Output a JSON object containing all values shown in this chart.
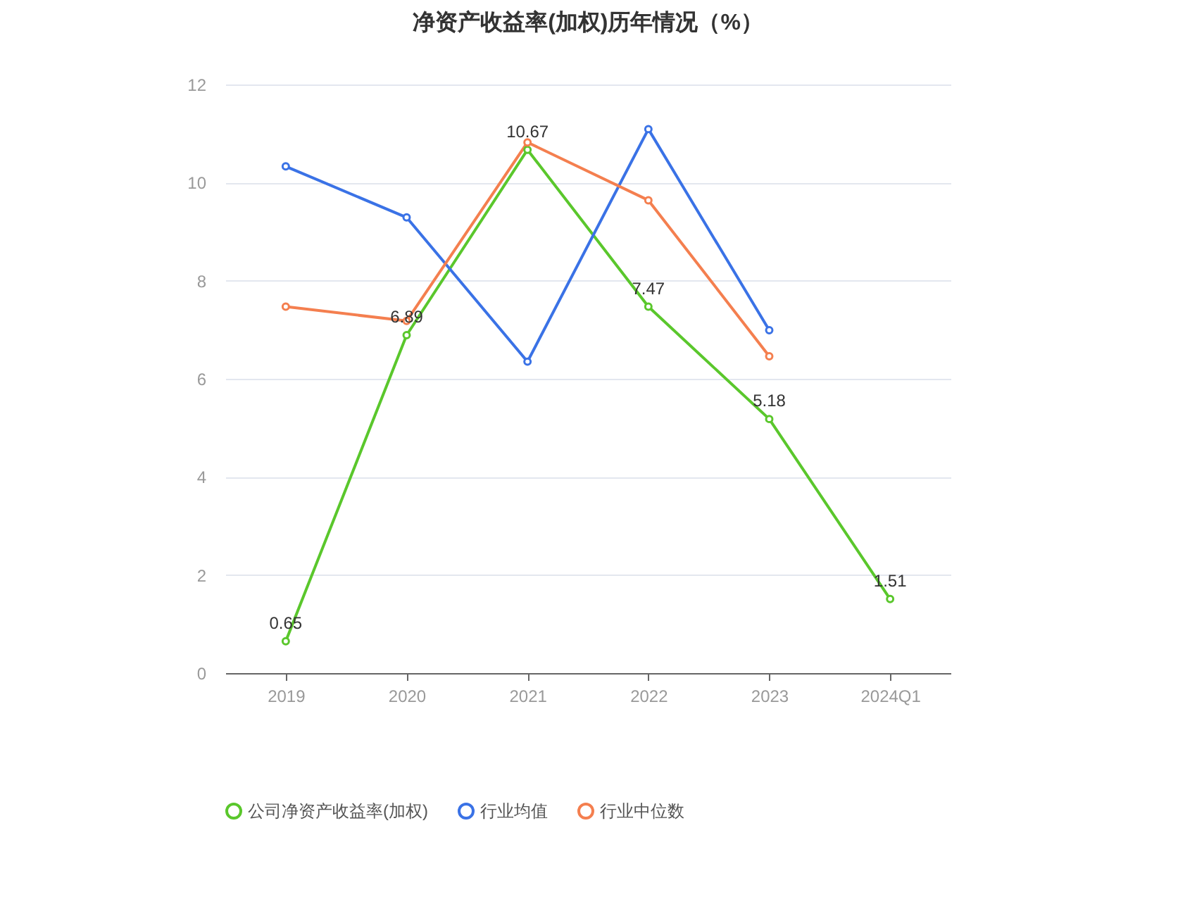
{
  "chart_data": {
    "type": "line",
    "title": "净资产收益率(加权)历年情况（%）",
    "categories": [
      "2019",
      "2020",
      "2021",
      "2022",
      "2023",
      "2024Q1"
    ],
    "ylim": [
      0,
      12
    ],
    "yticks": [
      0,
      2,
      4,
      6,
      8,
      10,
      12
    ],
    "grid": "y",
    "legend": "bottom",
    "marker": "circle",
    "line_style": "solid",
    "series": [
      {
        "name": "公司净资产收益率(加权)",
        "color": "#5ac72c",
        "values": [
          0.65,
          6.89,
          10.67,
          7.47,
          5.18,
          1.51
        ],
        "value_labels": [
          "0.65",
          "6.89",
          "10.67",
          "7.47",
          "5.18",
          "1.51"
        ]
      },
      {
        "name": "行业均值",
        "color": "#3a72e6",
        "values": [
          10.33,
          9.29,
          6.35,
          11.09,
          6.99,
          null
        ]
      },
      {
        "name": "行业中位数",
        "color": "#f47f4f",
        "values": [
          7.47,
          7.18,
          10.82,
          9.64,
          6.46,
          null
        ]
      }
    ]
  }
}
